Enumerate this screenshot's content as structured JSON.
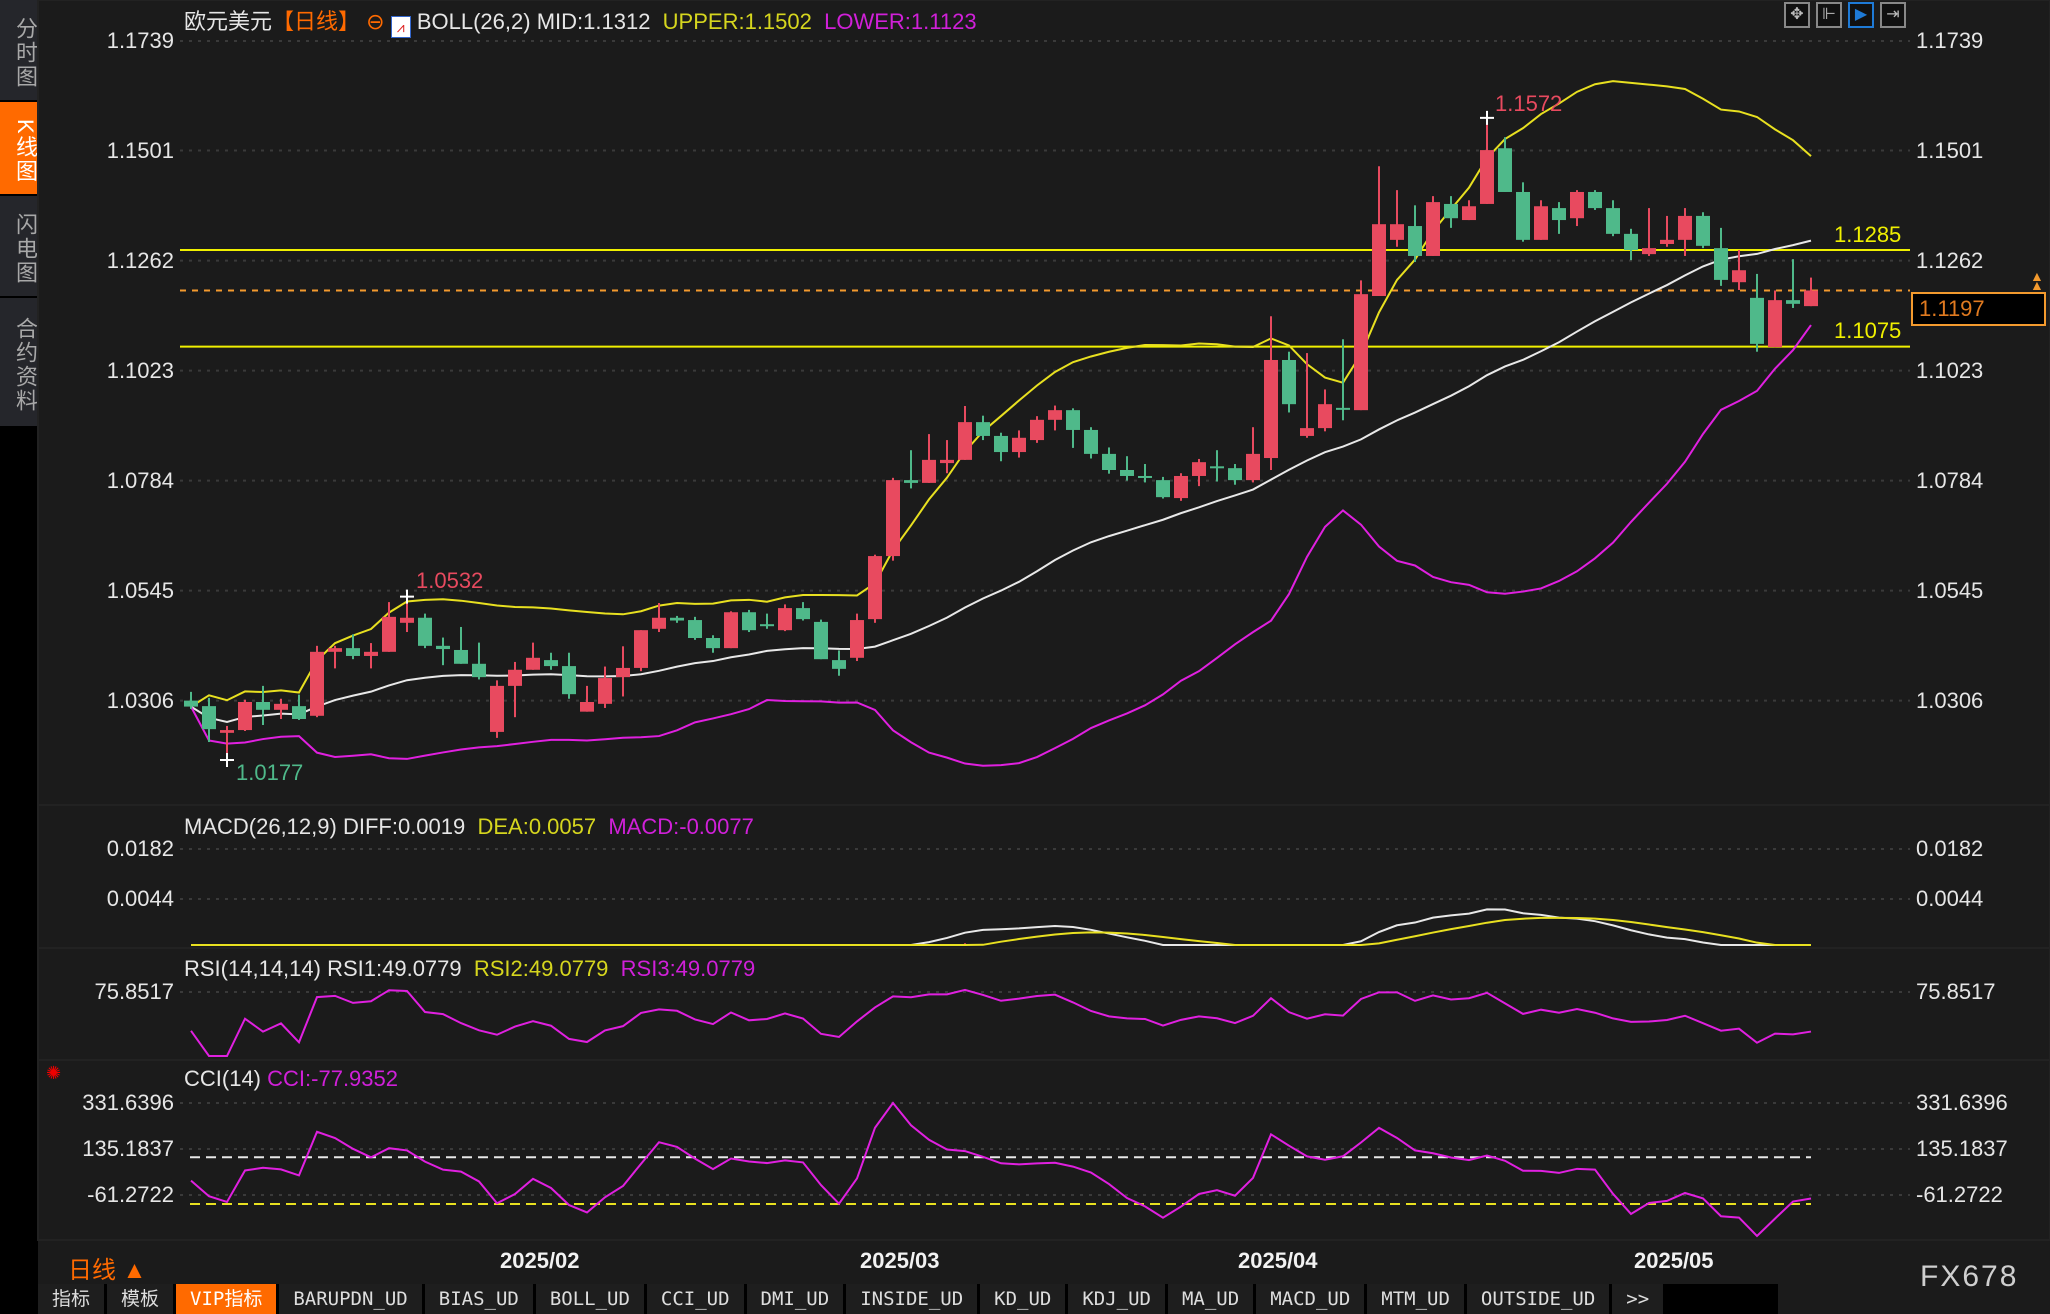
{
  "sidebar": {
    "items": [
      {
        "label": "分时图",
        "active": false
      },
      {
        "label": "K线图",
        "active": true
      },
      {
        "label": "闪电图",
        "active": false
      },
      {
        "label": "合约资料",
        "active": false
      }
    ]
  },
  "header": {
    "symbol": "欧元美元",
    "period": "【日线】",
    "indicator": "BOLL(26,2)",
    "mid": "MID:1.1312",
    "upper": "UPPER:1.1502",
    "lower": "LOWER:1.1123"
  },
  "toolbar": {
    "icons": [
      "crosshair-icon",
      "range-icon",
      "play-icon",
      "forward-icon"
    ]
  },
  "price_axis": {
    "ticks": [
      "1.1739",
      "1.1501",
      "1.1262",
      "1.1023",
      "1.0784",
      "1.0545",
      "1.0306"
    ]
  },
  "hlines": {
    "upper_label": "1.1285",
    "lower_label": "1.1075",
    "current": "1.1197"
  },
  "extremes": {
    "high": "1.1572",
    "mid_high": "1.0532",
    "low": "1.0177"
  },
  "macd": {
    "title": "MACD(26,12,9)",
    "diff": "DIFF:0.0019",
    "dea": "DEA:0.0057",
    "macd": "MACD:-0.0077",
    "ticks": [
      "0.0182",
      "0.0044"
    ]
  },
  "rsi": {
    "title": "RSI(14,14,14)",
    "rsi1": "RSI1:49.0779",
    "rsi2": "RSI2:49.0779",
    "rsi3": "RSI3:49.0779",
    "ticks": [
      "75.8517"
    ]
  },
  "cci": {
    "title": "CCI(14)",
    "value": "CCI:-77.9352",
    "ticks": [
      "331.6396",
      "135.1837",
      "-61.2722"
    ]
  },
  "dates": [
    "2025/02",
    "2025/03",
    "2025/04",
    "2025/05"
  ],
  "period_switch": "日线 ▲",
  "watermark": "FX678",
  "tabs": [
    "指标",
    "模板",
    "VIP指标",
    "BARUPDN_UD",
    "BIAS_UD",
    "BOLL_UD",
    "CCI_UD",
    "DMI_UD",
    "INSIDE_UD",
    "KD_UD",
    "KDJ_UD",
    "MA_UD",
    "MACD_UD",
    "MTM_UD",
    "OUTSIDE_UD",
    ">>"
  ],
  "colors": {
    "up": "#e84a5f",
    "down": "#4fb98a",
    "upper": "#e8e020",
    "mid": "#e8e8e8",
    "lower": "#e020e0",
    "accent": "#ff6a00"
  },
  "chart_data": {
    "type": "candlestick",
    "fields": [
      "open",
      "high",
      "low",
      "close"
    ],
    "x_labels": {
      "2025/02": 20,
      "2025/03": 40,
      "2025/04": 61,
      "2025/05": 83
    },
    "ylim": [
      1.0306,
      1.1739
    ],
    "candles": [
      [
        1.0306,
        1.0325,
        1.0288,
        1.0293
      ],
      [
        1.0294,
        1.0312,
        1.0216,
        1.0244
      ],
      [
        1.0236,
        1.0251,
        1.0177,
        1.0242
      ],
      [
        1.0242,
        1.0308,
        1.024,
        1.0303
      ],
      [
        1.0303,
        1.0338,
        1.0253,
        1.0286
      ],
      [
        1.0286,
        1.031,
        1.0266,
        1.0299
      ],
      [
        1.0294,
        1.0319,
        1.0264,
        1.0266
      ],
      [
        1.0273,
        1.0425,
        1.027,
        1.0412
      ],
      [
        1.0412,
        1.0425,
        1.0376,
        1.042
      ],
      [
        1.042,
        1.045,
        1.0396,
        1.0403
      ],
      [
        1.0403,
        1.0431,
        1.0376,
        1.0412
      ],
      [
        1.0412,
        1.052,
        1.0412,
        1.0488
      ],
      [
        1.0475,
        1.0532,
        1.0455,
        1.0486
      ],
      [
        1.0486,
        1.0495,
        1.042,
        1.0425
      ],
      [
        1.0425,
        1.0443,
        1.0383,
        1.0418
      ],
      [
        1.0416,
        1.0466,
        1.0386,
        1.0386
      ],
      [
        1.0386,
        1.0432,
        1.0352,
        1.0357
      ],
      [
        1.0238,
        1.035,
        1.0225,
        1.0338
      ],
      [
        1.0338,
        1.039,
        1.027,
        1.0373
      ],
      [
        1.0373,
        1.0432,
        1.0373,
        1.0399
      ],
      [
        1.0394,
        1.041,
        1.0373,
        1.0381
      ],
      [
        1.0381,
        1.041,
        1.031,
        1.032
      ],
      [
        1.0282,
        1.0338,
        1.0282,
        1.0303
      ],
      [
        1.0299,
        1.038,
        1.029,
        1.0355
      ],
      [
        1.0357,
        1.0424,
        1.0315,
        1.0377
      ],
      [
        1.0377,
        1.0459,
        1.037,
        1.0459
      ],
      [
        1.0462,
        1.0518,
        1.0455,
        1.0486
      ],
      [
        1.0486,
        1.049,
        1.0475,
        1.048
      ],
      [
        1.0481,
        1.0488,
        1.0438,
        1.0442
      ],
      [
        1.0442,
        1.0448,
        1.041,
        1.042
      ],
      [
        1.042,
        1.05,
        1.042,
        1.0498
      ],
      [
        1.0498,
        1.0503,
        1.0455,
        1.0459
      ],
      [
        1.0472,
        1.0495,
        1.0462,
        1.0468
      ],
      [
        1.0459,
        1.0515,
        1.0457,
        1.0507
      ],
      [
        1.0507,
        1.052,
        1.048,
        1.0483
      ],
      [
        1.0477,
        1.0482,
        1.0396,
        1.0396
      ],
      [
        1.0394,
        1.0415,
        1.036,
        1.0375
      ],
      [
        1.0399,
        1.0495,
        1.0392,
        1.0481
      ],
      [
        1.0483,
        1.0623,
        1.0475,
        1.062
      ],
      [
        1.062,
        1.079,
        1.061,
        1.0785
      ],
      [
        1.0785,
        1.085,
        1.0767,
        1.0779
      ],
      [
        1.0779,
        1.0885,
        1.0779,
        1.0829
      ],
      [
        1.0822,
        1.0872,
        1.08,
        1.0829
      ],
      [
        1.0829,
        1.0946,
        1.0829,
        1.0911
      ],
      [
        1.0911,
        1.0925,
        1.0872,
        1.0881
      ],
      [
        1.0881,
        1.0888,
        1.0826,
        1.0846
      ],
      [
        1.0846,
        1.0893,
        1.0834,
        1.0877
      ],
      [
        1.0872,
        1.0924,
        1.0866,
        1.0916
      ],
      [
        1.0916,
        1.0947,
        1.0893,
        1.0937
      ],
      [
        1.0937,
        1.0941,
        1.0855,
        1.0894
      ],
      [
        1.0894,
        1.09,
        1.0832,
        1.0842
      ],
      [
        1.0842,
        1.0856,
        1.0799,
        1.0807
      ],
      [
        1.0807,
        1.0837,
        1.0784,
        1.0794
      ],
      [
        1.0794,
        1.082,
        1.078,
        1.079
      ],
      [
        1.0785,
        1.0792,
        1.0745,
        1.0748
      ],
      [
        1.0746,
        1.08,
        1.074,
        1.0794
      ],
      [
        1.0794,
        1.0831,
        1.0772,
        1.0824
      ],
      [
        1.0815,
        1.085,
        1.0782,
        1.0813
      ],
      [
        1.0811,
        1.082,
        1.0775,
        1.0785
      ],
      [
        1.0785,
        1.09,
        1.078,
        1.0842
      ],
      [
        1.0833,
        1.1141,
        1.0807,
        1.1046
      ],
      [
        1.1046,
        1.1064,
        1.0932,
        1.095
      ],
      [
        1.0881,
        1.1061,
        1.0877,
        1.0898
      ],
      [
        1.0898,
        1.0982,
        1.0891,
        1.095
      ],
      [
        1.0942,
        1.1091,
        1.0915,
        1.094
      ],
      [
        1.0937,
        1.1219,
        1.0937,
        1.1189
      ],
      [
        1.1185,
        1.1467,
        1.1185,
        1.1341
      ],
      [
        1.1307,
        1.1415,
        1.1292,
        1.1341
      ],
      [
        1.1337,
        1.1382,
        1.1259,
        1.1272
      ],
      [
        1.1272,
        1.1402,
        1.1272,
        1.1389
      ],
      [
        1.1385,
        1.1402,
        1.1333,
        1.1354
      ],
      [
        1.135,
        1.1393,
        1.135,
        1.138
      ],
      [
        1.1385,
        1.1572,
        1.1385,
        1.1502
      ],
      [
        1.1506,
        1.153,
        1.1411,
        1.1411
      ],
      [
        1.1411,
        1.1432,
        1.1303,
        1.1307
      ],
      [
        1.1307,
        1.1393,
        1.1307,
        1.138
      ],
      [
        1.1376,
        1.1389,
        1.132,
        1.135
      ],
      [
        1.1354,
        1.1415,
        1.1337,
        1.1411
      ],
      [
        1.1411,
        1.1415,
        1.1372,
        1.1376
      ],
      [
        1.1376,
        1.1393,
        1.1315,
        1.132
      ],
      [
        1.132,
        1.1331,
        1.1263,
        1.1285
      ],
      [
        1.1276,
        1.1376,
        1.1272,
        1.1289
      ],
      [
        1.1298,
        1.1359,
        1.1292,
        1.1307
      ],
      [
        1.1307,
        1.1376,
        1.1272,
        1.1359
      ],
      [
        1.1359,
        1.1367,
        1.1289,
        1.1294
      ],
      [
        1.1289,
        1.1333,
        1.1207,
        1.122
      ],
      [
        1.1215,
        1.1285,
        1.1198,
        1.1241
      ],
      [
        1.1181,
        1.1233,
        1.1064,
        1.1081
      ],
      [
        1.1074,
        1.1197,
        1.1074,
        1.1176
      ],
      [
        1.1176,
        1.1265,
        1.1159,
        1.1168
      ],
      [
        1.1163,
        1.1225,
        1.1163,
        1.1197
      ]
    ]
  }
}
